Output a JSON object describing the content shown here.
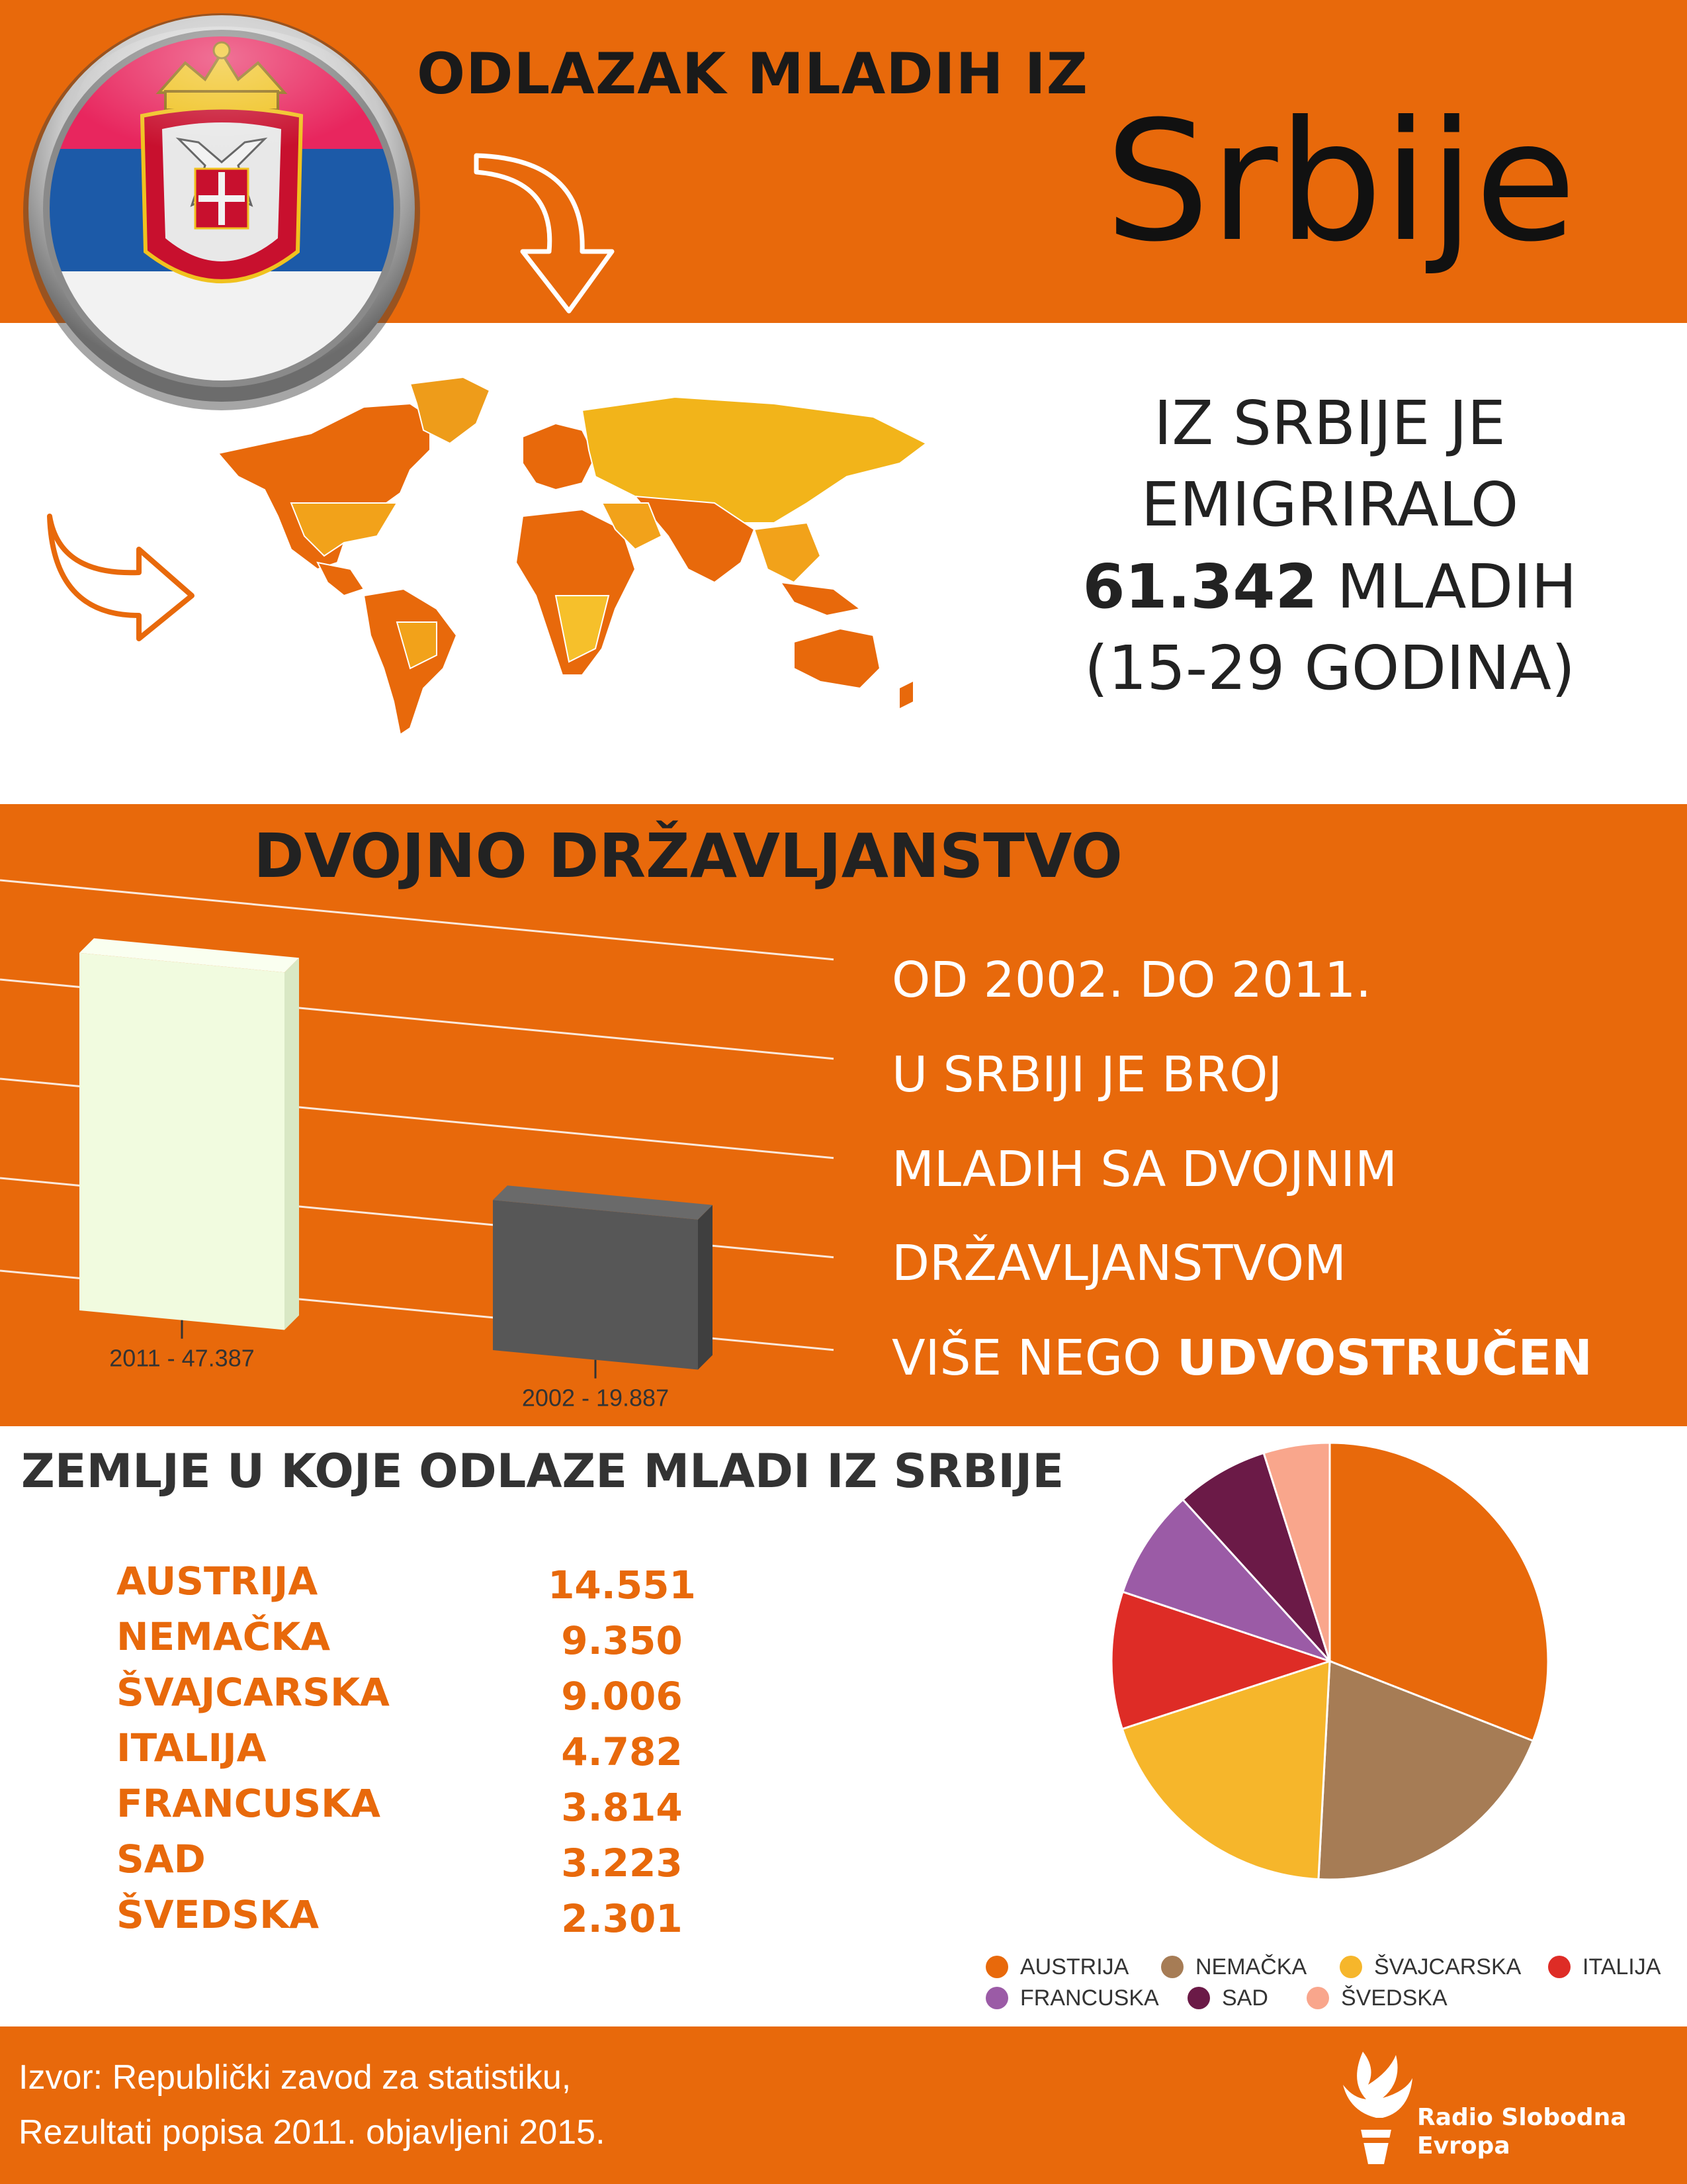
{
  "header": {
    "title_line1": "ODLAZAK MLADIH IZ",
    "title_line2": "Srbije"
  },
  "emigration": {
    "line1": "IZ SRBIJE JE",
    "line2": "EMIGRIRALO",
    "count": "61.342",
    "count_suffix": " MLADIH",
    "age_range": "(15-29 GODINA)"
  },
  "dual_citizenship": {
    "title": "DVOJNO DRŽAVLJANSTVO",
    "text_lines": [
      "OD 2002. DO 2011.",
      "U SRBIJI JE BROJ",
      "MLADIH SA DVOJNIM",
      "DRŽAVLJANSTVOM"
    ],
    "text_last_prefix": "VIŠE NEGO ",
    "text_last_bold": "UDVOSTRUČEN"
  },
  "countries": {
    "title": "ZEMLJE U KOJE ODLAZE MLADI IZ SRBIJE"
  },
  "colors": {
    "brand_orange": "#e8690b",
    "bar_2011": "#f1fbdf",
    "bar_2002": "#575757"
  },
  "chart_data": [
    {
      "type": "bar",
      "categories": [
        "2011",
        "2002"
      ],
      "values": [
        47387,
        19887
      ],
      "data_labels": [
        "2011 - 47.387",
        "2002 - 19.887"
      ],
      "title": "",
      "xlabel": "",
      "ylabel": "",
      "ylim": [
        0,
        50000
      ],
      "grid": true
    },
    {
      "type": "pie",
      "categories": [
        "AUSTRIJA",
        "NEMAČKA",
        "ŠVAJCARSKA",
        "ITALIJA",
        "FRANCUSKA",
        "SAD",
        "ŠVEDSKA"
      ],
      "values": [
        14551,
        9350,
        9006,
        4782,
        3814,
        3223,
        2301
      ],
      "value_labels": [
        "14.551",
        "9.350",
        "9.006",
        "4.782",
        "3.814",
        "3.223",
        "2.301"
      ],
      "colors": [
        "#e8690b",
        "#a67c55",
        "#f6b62b",
        "#de2c26",
        "#9b5ba6",
        "#6b1a47",
        "#f9a68c"
      ],
      "legend": "bottom",
      "title": ""
    }
  ],
  "footer": {
    "source_line1": "Izvor: Republički zavod za statistiku,",
    "source_line2": "Rezultati popisa 2011. objavljeni 2015.",
    "brand_line1": "Radio Slobodna",
    "brand_line2": "Evropa"
  }
}
